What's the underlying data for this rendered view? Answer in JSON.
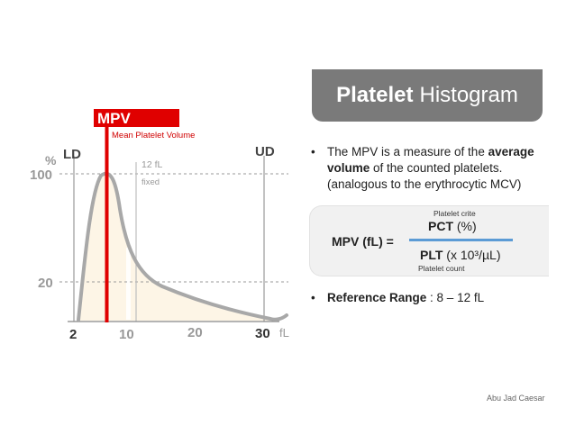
{
  "histogram": {
    "mpv_badge": "MPV",
    "mpv_caption": "Mean Platelet Volume",
    "y_unit": "%",
    "y_ticks": [
      "100",
      "20"
    ],
    "x_ticks": [
      "2",
      "10",
      "20",
      "30"
    ],
    "x_unit": "fL",
    "ld_label": "LD",
    "ud_label": "UD",
    "fixed_line_value": "12 fL",
    "fixed_line_note": "fixed",
    "colors": {
      "mpv_red": "#e00000",
      "curve": "#a8a8a8",
      "fill": "#fdf5e6"
    }
  },
  "title": {
    "bold": "Platelet",
    "rest": "Histogram"
  },
  "bullet1": {
    "marker": "•",
    "line1_pre": "The MPV is a measure of the ",
    "line1_bold": "average",
    "line2_bold": "volume",
    "line2_rest": " of the counted platelets.",
    "line3": "(analogous to the erythrocytic MCV)"
  },
  "formula": {
    "lhs": "MPV (fL) =",
    "numerator_caption": "Platelet crite",
    "numerator_bold": "PCT",
    "numerator_unit": "(%)",
    "denominator_bold": "PLT",
    "denominator_unit": "(x 10³/µL)",
    "denominator_caption": "Platelet count",
    "fraction_bar_color": "#5b9bd5"
  },
  "bullet2": {
    "marker": "•",
    "label_bold": "Reference Range",
    "value": " : 8 – 12 fL"
  },
  "credit": "Abu Jad Caesar"
}
